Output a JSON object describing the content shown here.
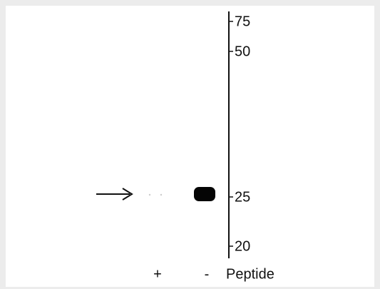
{
  "markers": [
    "75",
    "50",
    "25",
    "20"
  ],
  "lanes": [
    "+",
    "-"
  ],
  "lane_axis_label": "Peptide"
}
